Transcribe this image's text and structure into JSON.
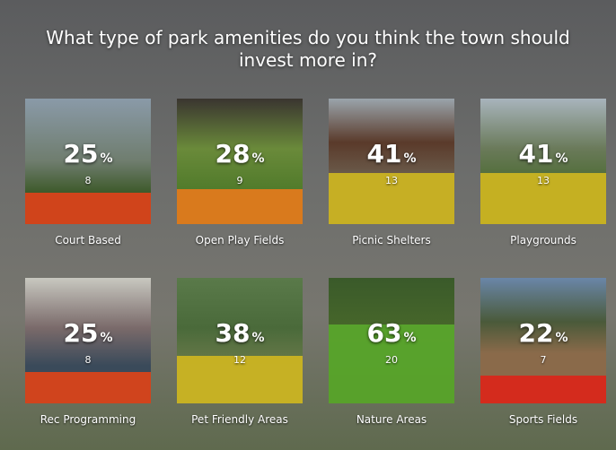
{
  "question": "What type of park amenities do you think the town should invest more in?",
  "percent_symbol": "%",
  "options": [
    {
      "label": "Court Based",
      "percent": 25,
      "votes": 8,
      "color": "#d8431a"
    },
    {
      "label": "Open Play Fields",
      "percent": 28,
      "votes": 9,
      "color": "#e07a1c"
    },
    {
      "label": "Picnic Shelters",
      "percent": 41,
      "votes": 13,
      "color": "#cbb422"
    },
    {
      "label": "Playgrounds",
      "percent": 41,
      "votes": 13,
      "color": "#cbb422"
    },
    {
      "label": "Rec Programming",
      "percent": 25,
      "votes": 8,
      "color": "#d8431a"
    },
    {
      "label": "Pet Friendly Areas",
      "percent": 38,
      "votes": 12,
      "color": "#cbb422"
    },
    {
      "label": "Nature Areas",
      "percent": 63,
      "votes": 20,
      "color": "#5aa52c"
    },
    {
      "label": "Sports Fields",
      "percent": 22,
      "votes": 7,
      "color": "#d8281a"
    }
  ]
}
